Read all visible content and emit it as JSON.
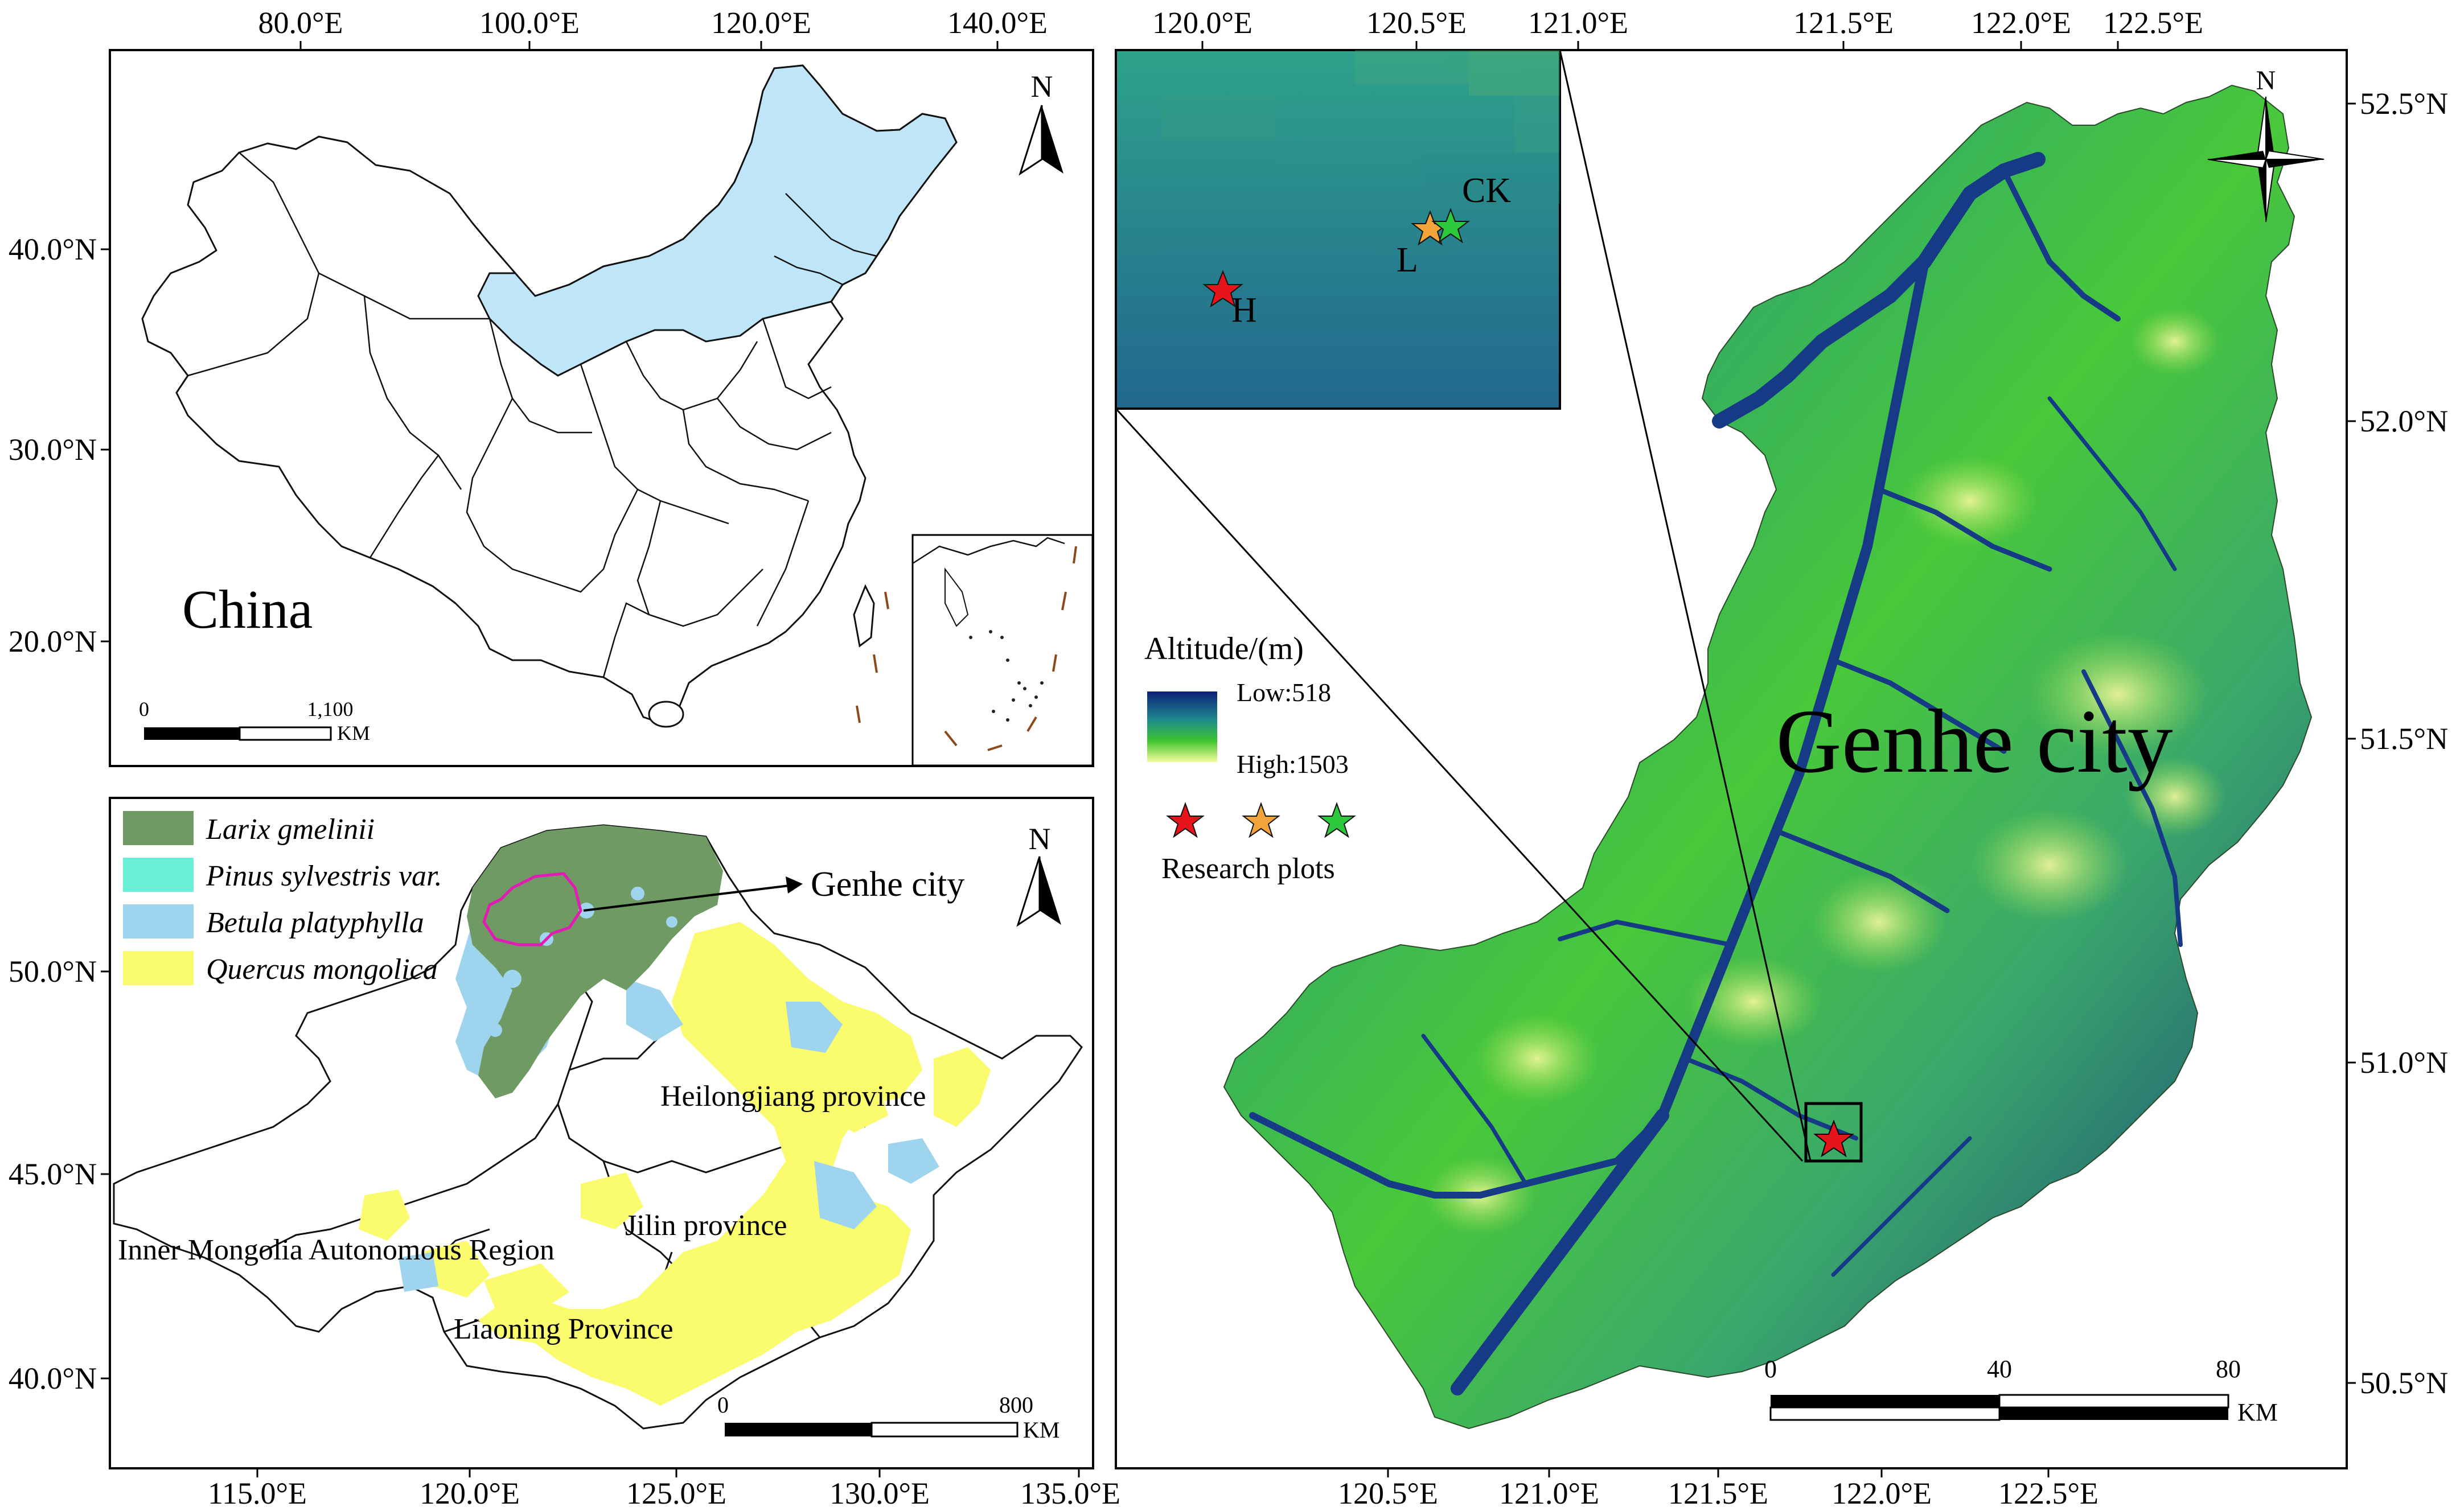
{
  "panel_china": {
    "top_ticks": [
      "80.0°E",
      "100.0°E",
      "120.0°E",
      "140.0°E"
    ],
    "left_ticks": [
      "40.0°N",
      "30.0°N",
      "20.0°N"
    ],
    "country_label": "China",
    "north_label": "N",
    "scale": {
      "start": "0",
      "end": "1,100",
      "unit": "KM"
    }
  },
  "panel_northeast": {
    "legend": [
      {
        "label": "Larix gmelinii",
        "color": "#6f9a63"
      },
      {
        "label": "Pinus sylvestris var.",
        "color": "#68f0d8"
      },
      {
        "label": "Betula platyphylla",
        "color": "#9ed4ee"
      },
      {
        "label": "Quercus mongolica",
        "color": "#fbfb6e"
      }
    ],
    "callout": "Genhe city",
    "north_label": "N",
    "region_labels": {
      "heilongjiang": "Heilongjiang province",
      "jilin": "Jilin province",
      "inner_mongolia": "Inner Mongolia Autonomous Region",
      "liaoning": "Liaoning Province"
    },
    "left_ticks": [
      "50.0°N",
      "45.0°N",
      "40.0°N"
    ],
    "bottom_ticks": [
      "115.0°E",
      "120.0°E",
      "125.0°E",
      "130.0°E",
      "135.0°E"
    ],
    "scale": {
      "start": "0",
      "end": "800",
      "unit": "KM"
    }
  },
  "panel_genhe": {
    "top_ticks": [
      "120.0°E",
      "120.5°E",
      "121.0°E",
      "121.5°E",
      "122.0°E",
      "122.5°E"
    ],
    "right_ticks": [
      "52.5°N",
      "52.0°N",
      "51.5°N",
      "51.0°N",
      "50.5°N"
    ],
    "bottom_ticks": [
      "120.5°E",
      "121.0°E",
      "121.5°E",
      "122.0°E",
      "122.5°E"
    ],
    "city_label": "Genhe city",
    "north_label": "N",
    "legend": {
      "title": "Altitude/(m)",
      "low": "Low:518",
      "high": "High:1503",
      "plots_label": "Research plots",
      "plot_colors": [
        "#e8141c",
        "#f2a33a",
        "#2cc93c"
      ]
    },
    "inset_labels": {
      "ck": "CK",
      "l": "L",
      "h": "H"
    },
    "scale": {
      "start": "0",
      "mid": "40",
      "end": "80",
      "unit": "KM"
    }
  }
}
